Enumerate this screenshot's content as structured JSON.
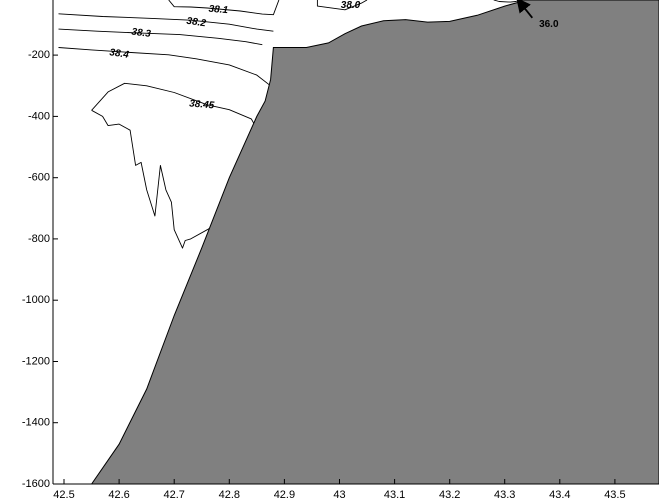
{
  "chart_data": {
    "type": "contour",
    "title": "",
    "xlabel": "",
    "ylabel": "",
    "xlim": [
      42.48,
      43.58
    ],
    "ylim": [
      -1600,
      -20
    ],
    "grid": false,
    "x_tick_labels": [
      "42.5",
      "42.6",
      "42.7",
      "42.8",
      "42.9",
      "43",
      "43.1",
      "43.2",
      "43.3",
      "43.4",
      "43.5"
    ],
    "x_ticks": [
      42.5,
      42.6,
      42.7,
      42.8,
      42.9,
      43.0,
      43.1,
      43.2,
      43.3,
      43.4,
      43.5
    ],
    "y_tick_labels": [
      "-200",
      "-400",
      "-600",
      "-800",
      "-1000",
      "-1200",
      "-1400",
      "-1600"
    ],
    "y_ticks": [
      -200,
      -400,
      -600,
      -800,
      -1000,
      -1200,
      -1400,
      -1600
    ],
    "colors": {
      "terrain": "#808080",
      "contour_line": "#000000",
      "background": "#ffffff"
    },
    "terrain_outline": [
      [
        42.55,
        -1600
      ],
      [
        42.6,
        -1470
      ],
      [
        42.65,
        -1290
      ],
      [
        42.7,
        -1050
      ],
      [
        42.75,
        -830
      ],
      [
        42.8,
        -600
      ],
      [
        42.85,
        -400
      ],
      [
        42.865,
        -350
      ],
      [
        42.875,
        -280
      ],
      [
        42.88,
        -175
      ],
      [
        42.94,
        -175
      ],
      [
        42.98,
        -160
      ],
      [
        43.01,
        -130
      ],
      [
        43.04,
        -105
      ],
      [
        43.08,
        -88
      ],
      [
        43.12,
        -84
      ],
      [
        43.16,
        -92
      ],
      [
        43.2,
        -90
      ],
      [
        43.25,
        -70
      ],
      [
        43.3,
        -40
      ],
      [
        43.33,
        -25
      ],
      [
        43.33,
        -20
      ],
      [
        43.58,
        -20
      ],
      [
        43.58,
        -1600
      ]
    ],
    "contours": [
      {
        "level": "36.0",
        "points": [
          [
            43.28,
            -20
          ],
          [
            43.29,
            -25
          ],
          [
            43.31,
            -27
          ],
          [
            43.32,
            -25
          ],
          [
            43.33,
            -20
          ]
        ]
      },
      {
        "level": "38.0",
        "points": [
          [
            42.96,
            -20
          ],
          [
            42.96,
            -40
          ],
          [
            43.01,
            -52
          ],
          [
            43.04,
            -30
          ],
          [
            43.05,
            -20
          ]
        ]
      },
      {
        "level": "38.1",
        "points": [
          [
            42.69,
            -20
          ],
          [
            42.7,
            -42
          ],
          [
            42.73,
            -43
          ],
          [
            42.76,
            -46
          ],
          [
            42.82,
            -56
          ],
          [
            42.86,
            -66
          ],
          [
            42.88,
            -68
          ],
          [
            42.89,
            -20
          ]
        ]
      },
      {
        "level": "38.2",
        "points": [
          [
            42.49,
            -65
          ],
          [
            42.57,
            -74
          ],
          [
            42.66,
            -80
          ],
          [
            42.73,
            -86
          ],
          [
            42.8,
            -99
          ],
          [
            42.85,
            -115
          ],
          [
            42.88,
            -122
          ]
        ]
      },
      {
        "level": "38.3",
        "points": [
          [
            42.49,
            -115
          ],
          [
            42.56,
            -122
          ],
          [
            42.64,
            -128
          ],
          [
            42.71,
            -133
          ],
          [
            42.78,
            -145
          ],
          [
            42.83,
            -156
          ],
          [
            42.86,
            -166
          ]
        ]
      },
      {
        "level": "38.4",
        "points": [
          [
            42.49,
            -175
          ],
          [
            42.55,
            -183
          ],
          [
            42.61,
            -190
          ],
          [
            42.69,
            -199
          ],
          [
            42.74,
            -212
          ],
          [
            42.8,
            -232
          ],
          [
            42.85,
            -265
          ],
          [
            42.875,
            -300
          ]
        ]
      },
      {
        "level": "38.45",
        "points": [
          [
            42.55,
            -380
          ],
          [
            42.58,
            -320
          ],
          [
            42.61,
            -292
          ],
          [
            42.65,
            -300
          ],
          [
            42.7,
            -322
          ],
          [
            42.76,
            -362
          ],
          [
            42.8,
            -378
          ],
          [
            42.84,
            -408
          ],
          [
            42.85,
            -440
          ]
        ]
      },
      {
        "level": "",
        "points": [
          [
            42.55,
            -380
          ],
          [
            42.57,
            -400
          ],
          [
            42.58,
            -430
          ],
          [
            42.6,
            -425
          ],
          [
            42.62,
            -445
          ],
          [
            42.63,
            -560
          ],
          [
            42.64,
            -550
          ],
          [
            42.65,
            -640
          ],
          [
            42.665,
            -725
          ],
          [
            42.675,
            -560
          ],
          [
            42.685,
            -640
          ],
          [
            42.695,
            -680
          ],
          [
            42.7,
            -770
          ],
          [
            42.715,
            -830
          ],
          [
            42.72,
            -805
          ],
          [
            42.73,
            -800
          ],
          [
            42.76,
            -770
          ],
          [
            42.785,
            -740
          ],
          [
            42.8,
            -765
          ],
          [
            42.81,
            -800
          ]
        ]
      }
    ],
    "contour_labels": [
      {
        "text": "38.0",
        "x": 43.02,
        "y": -38,
        "rotation": 0
      },
      {
        "text": "38.1",
        "x": 42.78,
        "y": -52,
        "rotation": 5
      },
      {
        "text": "38.2",
        "x": 42.74,
        "y": -93,
        "rotation": 8
      },
      {
        "text": "38.3",
        "x": 42.64,
        "y": -128,
        "rotation": 7
      },
      {
        "text": "38.4",
        "x": 42.6,
        "y": -196,
        "rotation": 8
      },
      {
        "text": "38.45",
        "x": 42.75,
        "y": -362,
        "rotation": 5
      }
    ],
    "callout": {
      "text": "36.0",
      "label_x": 43.38,
      "label_y": -100,
      "arrow_from_x": 43.35,
      "arrow_from_y": -78,
      "arrow_to_x": 43.325,
      "arrow_to_y": -22
    }
  }
}
